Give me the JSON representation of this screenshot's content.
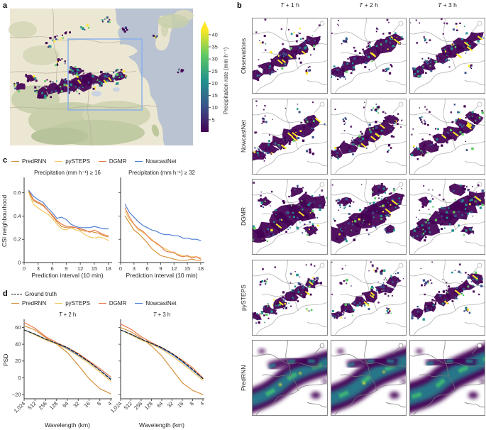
{
  "panels": {
    "a": "a",
    "b": "b",
    "c": "c",
    "d": "d"
  },
  "colors": {
    "predrnn": "#d6913d",
    "pysteps": "#f3c75f",
    "dgmr": "#e77a4e",
    "nowcastnet": "#4d7fd0",
    "ground_truth": "#1c1c1c",
    "viridis": [
      "#440154",
      "#3b528b",
      "#21918c",
      "#5ec962",
      "#fde725"
    ],
    "sea": "#b9c3d2",
    "land": "#ece7d2",
    "roi_box": "#8ab0ec"
  },
  "panel_a": {
    "colorbar": {
      "label": "Precipitation rate (mm h⁻¹)",
      "ticks": [
        5,
        10,
        15,
        20,
        25,
        30,
        35,
        40
      ],
      "vmax": 42
    }
  },
  "panel_b": {
    "column_titles": [
      "T + 1 h",
      "T + 2 h",
      "T + 3 h"
    ],
    "row_labels": [
      "Observations",
      "NowcastNet",
      "DGMR",
      "pySTEPS",
      "PredRNN"
    ]
  },
  "panel_c": {
    "legend": [
      {
        "label": "PredRNN",
        "color_key": "predrnn"
      },
      {
        "label": "pySTEPS",
        "color_key": "pysteps"
      },
      {
        "label": "DGMR",
        "color_key": "dgmr"
      },
      {
        "label": "NowcastNet",
        "color_key": "nowcastnet"
      }
    ]
  },
  "panel_d": {
    "legend_row1": [
      {
        "label": "Ground truth",
        "color_key": "ground_truth",
        "dashed": true
      }
    ],
    "legend_row2": [
      {
        "label": "PredRNN",
        "color_key": "predrnn"
      },
      {
        "label": "pySTEPS",
        "color_key": "pysteps"
      },
      {
        "label": "DGMR",
        "color_key": "dgmr"
      },
      {
        "label": "NowcastNet",
        "color_key": "nowcastnet"
      }
    ]
  },
  "chart_data": [
    {
      "id": "csi_16",
      "panel": "c",
      "type": "line",
      "title": "Precipitation (mm h⁻¹) ≥ 16",
      "xlabel": "Prediction interval (10 min)",
      "ylabel": "CSI neighbourhood",
      "xlim": [
        0,
        18.5
      ],
      "ylim": [
        0,
        0.72
      ],
      "xticks": [
        0,
        3,
        6,
        9,
        12,
        15,
        18
      ],
      "yticks": [
        0,
        0.2,
        0.4,
        0.6
      ],
      "ytick_labels": [
        "0",
        "0.2",
        "0.4",
        "0.6"
      ],
      "x": [
        1,
        2,
        3,
        4,
        5,
        6,
        7,
        8,
        9,
        10,
        11,
        12,
        13,
        14,
        15,
        16,
        17,
        18
      ],
      "series": [
        {
          "name": "pySTEPS",
          "color_key": "pysteps",
          "values": [
            0.6,
            0.5,
            0.47,
            0.44,
            0.42,
            0.38,
            0.33,
            0.29,
            0.28,
            0.3,
            0.28,
            0.27,
            0.24,
            0.22,
            0.21,
            0.22,
            0.21,
            0.19
          ]
        },
        {
          "name": "PredRNN",
          "color_key": "predrnn",
          "values": [
            0.61,
            0.53,
            0.51,
            0.49,
            0.45,
            0.4,
            0.35,
            0.31,
            0.3,
            0.3,
            0.3,
            0.28,
            0.27,
            0.27,
            0.26,
            0.25,
            0.23,
            0.22
          ]
        },
        {
          "name": "DGMR",
          "color_key": "dgmr",
          "values": [
            0.62,
            0.54,
            0.52,
            0.5,
            0.45,
            0.41,
            0.36,
            0.33,
            0.31,
            0.31,
            0.3,
            0.29,
            0.28,
            0.26,
            0.28,
            0.26,
            0.24,
            0.23
          ]
        },
        {
          "name": "NowcastNet",
          "color_key": "nowcastnet",
          "values": [
            0.62,
            0.57,
            0.54,
            0.52,
            0.47,
            0.43,
            0.38,
            0.39,
            0.37,
            0.33,
            0.31,
            0.3,
            0.3,
            0.3,
            0.31,
            0.3,
            0.29,
            0.29
          ]
        }
      ]
    },
    {
      "id": "csi_32",
      "panel": "c",
      "type": "line",
      "title": "Precipitation (mm h⁻¹) ≥ 32",
      "xlabel": "Prediction interval (10 min)",
      "ylabel": null,
      "show_ytick_labels": false,
      "xlim": [
        0,
        18.5
      ],
      "ylim": [
        0,
        0.72
      ],
      "xticks": [
        0,
        3,
        6,
        9,
        12,
        15,
        18
      ],
      "yticks": [
        0,
        0.2,
        0.4,
        0.6
      ],
      "ytick_labels": [
        "0",
        "0.2",
        "0.4",
        "0.6"
      ],
      "x": [
        1,
        2,
        3,
        4,
        5,
        6,
        7,
        8,
        9,
        10,
        11,
        12,
        13,
        14,
        15,
        16,
        17,
        18
      ],
      "series": [
        {
          "name": "PredRNN",
          "color_key": "predrnn",
          "values": [
            0.4,
            0.34,
            0.28,
            0.25,
            0.21,
            0.17,
            0.12,
            0.09,
            0.06,
            0.05,
            0.04,
            0.03,
            0.02,
            0.02,
            0.02,
            0.03,
            0.02,
            0.02
          ]
        },
        {
          "name": "pySTEPS",
          "color_key": "pysteps",
          "values": [
            0.44,
            0.37,
            0.33,
            0.28,
            0.26,
            0.23,
            0.2,
            0.16,
            0.14,
            0.12,
            0.1,
            0.08,
            0.07,
            0.06,
            0.05,
            0.05,
            0.05,
            0.04
          ]
        },
        {
          "name": "DGMR",
          "color_key": "dgmr",
          "values": [
            0.47,
            0.39,
            0.33,
            0.29,
            0.27,
            0.23,
            0.19,
            0.17,
            0.14,
            0.1,
            0.09,
            0.09,
            0.06,
            0.05,
            0.06,
            0.04,
            0.05,
            0.03
          ]
        },
        {
          "name": "NowcastNet",
          "color_key": "nowcastnet",
          "values": [
            0.5,
            0.43,
            0.39,
            0.35,
            0.32,
            0.3,
            0.28,
            0.27,
            0.25,
            0.24,
            0.24,
            0.23,
            0.23,
            0.21,
            0.21,
            0.2,
            0.2,
            0.19
          ]
        }
      ]
    },
    {
      "id": "psd_t2h",
      "panel": "d",
      "type": "line",
      "title": "T + 2 h",
      "xlabel": "Wavelength (km)",
      "ylabel": "PSD",
      "xticklabels": [
        "1,024",
        "512",
        "256",
        "128",
        "64",
        "32",
        "16",
        "8",
        "4"
      ],
      "ylim": [
        -25,
        68
      ],
      "yticks": [
        -20,
        0,
        20,
        40,
        60
      ],
      "ytick_labels": [
        "−20",
        "0",
        "20",
        "40",
        "60"
      ],
      "series": [
        {
          "name": "PredRNN",
          "color_key": "predrnn",
          "values": [
            62,
            57,
            48,
            40,
            30,
            15,
            -1,
            -13,
            -19
          ]
        },
        {
          "name": "pySTEPS",
          "color_key": "pysteps",
          "values": [
            57,
            51,
            45,
            40,
            34,
            26,
            17,
            7,
            -4
          ]
        },
        {
          "name": "DGMR",
          "color_key": "dgmr",
          "values": [
            66,
            59,
            49,
            42,
            36,
            29,
            20,
            11,
            1
          ]
        },
        {
          "name": "NowcastNet",
          "color_key": "nowcastnet",
          "values": [
            57,
            52,
            46,
            41,
            35,
            27,
            19,
            9,
            -1
          ]
        },
        {
          "name": "Ground truth",
          "color_key": "ground_truth",
          "dashed": true,
          "values": [
            57,
            52,
            46,
            41,
            36,
            28,
            19,
            9,
            -2
          ]
        }
      ]
    },
    {
      "id": "psd_t3h",
      "panel": "d",
      "type": "line",
      "title": "T + 3 h",
      "xlabel": "Wavelength (km)",
      "ylabel": null,
      "show_ytick_labels": false,
      "xticklabels": [
        "1,024",
        "512",
        "256",
        "128",
        "64",
        "32",
        "16",
        "8",
        "4"
      ],
      "ylim": [
        -25,
        68
      ],
      "yticks": [
        -20,
        0,
        20,
        40,
        60
      ],
      "ytick_labels": [
        "−20",
        "0",
        "20",
        "40",
        "60"
      ],
      "series": [
        {
          "name": "PredRNN",
          "color_key": "predrnn",
          "values": [
            60,
            55,
            47,
            38,
            26,
            10,
            -6,
            -15,
            -20
          ]
        },
        {
          "name": "pySTEPS",
          "color_key": "pysteps",
          "values": [
            57,
            51,
            45,
            40,
            34,
            26,
            17,
            7,
            -3
          ]
        },
        {
          "name": "DGMR",
          "color_key": "dgmr",
          "values": [
            64,
            58,
            49,
            42,
            36,
            29,
            21,
            12,
            0
          ]
        },
        {
          "name": "NowcastNet",
          "color_key": "nowcastnet",
          "values": [
            57,
            52,
            46,
            41,
            35,
            28,
            19,
            9,
            -1
          ]
        },
        {
          "name": "Ground truth",
          "color_key": "ground_truth",
          "dashed": true,
          "values": [
            57,
            52,
            46,
            41,
            36,
            29,
            20,
            10,
            -1
          ]
        }
      ]
    }
  ]
}
